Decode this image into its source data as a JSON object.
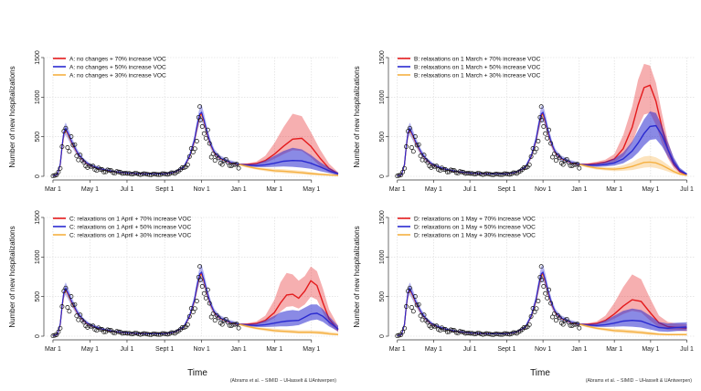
{
  "figure": {
    "x_title": "Time",
    "citation": "(Abrams et al. − SIMID − UHasselt & UAntwerpen)"
  },
  "colors": {
    "red": "#e41a1c",
    "blue": "#2a2ad0",
    "orange": "#f5b041",
    "obs": "#111111"
  },
  "chart_data": [
    {
      "type": "line",
      "title": "",
      "ylabel": "Number of new hospitalizations",
      "xlabel": "",
      "ylim": [
        0,
        1500
      ],
      "yticks": [
        0,
        500,
        1000,
        1500
      ],
      "xlim": [
        -15,
        470
      ],
      "xtick_days": [
        0,
        61,
        122,
        184,
        245,
        306,
        365,
        426
      ],
      "xtick_labels": [
        "Mar 1",
        "May 1",
        "Jul 1",
        "Sept 1",
        "Nov 1",
        "Jan 1",
        "Mar 1",
        "May 1"
      ],
      "series": [
        {
          "name": "A: no changes + 70% increase VOC",
          "color": "red",
          "x": [
            306,
            320,
            335,
            350,
            365,
            380,
            395,
            410,
            425,
            440,
            455,
            470
          ],
          "y": [
            150,
            150,
            160,
            200,
            280,
            380,
            470,
            480,
            380,
            230,
            100,
            30
          ],
          "lo": [
            150,
            140,
            145,
            170,
            220,
            280,
            330,
            320,
            240,
            130,
            50,
            15
          ],
          "hi": [
            160,
            165,
            185,
            260,
            420,
            620,
            790,
            760,
            560,
            340,
            160,
            50
          ]
        },
        {
          "name": "A: no changes + 50% increase VOC",
          "color": "blue",
          "x": [
            306,
            320,
            335,
            350,
            365,
            380,
            395,
            410,
            425,
            440,
            455,
            470
          ],
          "y": [
            150,
            140,
            135,
            145,
            165,
            190,
            200,
            195,
            165,
            120,
            70,
            30
          ],
          "lo": [
            150,
            125,
            115,
            115,
            120,
            125,
            120,
            110,
            95,
            65,
            40,
            15
          ],
          "hi": [
            160,
            155,
            160,
            200,
            260,
            320,
            360,
            340,
            270,
            180,
            110,
            50
          ]
        },
        {
          "name": "A: no changes + 30% increase VOC",
          "color": "orange",
          "x": [
            306,
            320,
            335,
            350,
            365,
            380,
            395,
            410,
            425,
            440,
            455,
            470
          ],
          "y": [
            150,
            125,
            100,
            85,
            70,
            65,
            55,
            45,
            35,
            25,
            18,
            10
          ],
          "lo": [
            140,
            110,
            85,
            65,
            50,
            40,
            30,
            25,
            15,
            10,
            5,
            2
          ],
          "hi": [
            160,
            140,
            115,
            105,
            95,
            90,
            80,
            70,
            55,
            40,
            30,
            20
          ]
        }
      ]
    },
    {
      "type": "line",
      "title": "",
      "ylabel": "Number of new hospitalizations",
      "xlabel": "",
      "ylim": [
        0,
        1500
      ],
      "yticks": [
        0,
        500,
        1000,
        1500
      ],
      "xlim": [
        -15,
        500
      ],
      "xtick_days": [
        0,
        61,
        122,
        184,
        245,
        306,
        365,
        426,
        487
      ],
      "xtick_labels": [
        "Mar 1",
        "May 1",
        "Jul 1",
        "Sept 1",
        "Nov 1",
        "Jan 1",
        "Mar 1",
        "May 1",
        "Jul 1"
      ],
      "series": [
        {
          "name": "B: relaxations on 1 March + 70% increase VOC",
          "color": "red",
          "x": [
            306,
            320,
            335,
            350,
            365,
            380,
            395,
            405,
            415,
            425,
            435,
            445,
            455,
            465,
            475,
            487
          ],
          "y": [
            150,
            150,
            160,
            180,
            220,
            350,
            620,
            900,
            1120,
            1150,
            950,
            620,
            340,
            150,
            60,
            20
          ],
          "lo": [
            150,
            140,
            145,
            160,
            180,
            250,
            420,
            620,
            780,
            800,
            650,
            420,
            230,
            100,
            40,
            10
          ],
          "hi": [
            160,
            165,
            185,
            210,
            280,
            520,
            880,
            1220,
            1420,
            1400,
            1180,
            800,
            450,
            220,
            90,
            35
          ]
        },
        {
          "name": "B: relaxations on 1 March + 50% increase VOC",
          "color": "blue",
          "x": [
            306,
            320,
            335,
            350,
            365,
            380,
            395,
            405,
            415,
            425,
            435,
            445,
            455,
            465,
            475,
            487
          ],
          "y": [
            150,
            140,
            140,
            150,
            170,
            220,
            320,
            420,
            540,
            630,
            640,
            520,
            340,
            180,
            80,
            25
          ],
          "lo": [
            150,
            125,
            120,
            125,
            135,
            165,
            230,
            300,
            390,
            460,
            470,
            380,
            250,
            130,
            55,
            15
          ],
          "hi": [
            160,
            155,
            165,
            185,
            225,
            300,
            440,
            580,
            720,
            820,
            800,
            640,
            430,
            240,
            110,
            40
          ]
        },
        {
          "name": "B: relaxations on 1 March + 30% increase VOC",
          "color": "orange",
          "x": [
            306,
            320,
            335,
            350,
            365,
            380,
            395,
            405,
            415,
            425,
            435,
            445,
            455,
            465,
            475,
            487
          ],
          "y": [
            150,
            125,
            105,
            95,
            90,
            100,
            125,
            150,
            175,
            180,
            170,
            140,
            100,
            60,
            30,
            10
          ],
          "lo": [
            140,
            110,
            85,
            75,
            65,
            70,
            80,
            95,
            110,
            115,
            105,
            85,
            60,
            35,
            15,
            5
          ],
          "hi": [
            160,
            140,
            120,
            115,
            115,
            140,
            180,
            220,
            250,
            260,
            240,
            200,
            145,
            90,
            50,
            20
          ]
        }
      ]
    },
    {
      "type": "line",
      "title": "",
      "ylabel": "Number of new hospitalizations",
      "xlabel": "",
      "ylim": [
        0,
        1500
      ],
      "yticks": [
        0,
        500,
        1000,
        1500
      ],
      "xlim": [
        -15,
        470
      ],
      "xtick_days": [
        0,
        61,
        122,
        184,
        245,
        306,
        365,
        426
      ],
      "xtick_labels": [
        "Mar 1",
        "May 1",
        "Jul 1",
        "Sept 1",
        "Nov 1",
        "Jan 1",
        "Mar 1",
        "May 1"
      ],
      "series": [
        {
          "name": "C: relaxations on 1 April + 70% increase VOC",
          "color": "red",
          "x": [
            306,
            320,
            335,
            350,
            365,
            375,
            385,
            395,
            405,
            415,
            425,
            435,
            445,
            455,
            470
          ],
          "y": [
            150,
            150,
            160,
            200,
            300,
            420,
            520,
            530,
            480,
            570,
            700,
            640,
            420,
            220,
            80
          ],
          "lo": [
            150,
            140,
            145,
            170,
            230,
            310,
            370,
            380,
            350,
            400,
            500,
            460,
            300,
            150,
            50
          ],
          "hi": [
            160,
            165,
            185,
            260,
            460,
            680,
            800,
            780,
            700,
            760,
            880,
            820,
            600,
            340,
            130
          ]
        },
        {
          "name": "C: relaxations on 1 April + 50% increase VOC",
          "color": "blue",
          "x": [
            306,
            320,
            335,
            350,
            365,
            375,
            385,
            395,
            405,
            415,
            425,
            435,
            445,
            455,
            470
          ],
          "y": [
            150,
            140,
            135,
            145,
            165,
            180,
            190,
            195,
            200,
            240,
            280,
            290,
            250,
            180,
            90
          ],
          "lo": [
            150,
            125,
            115,
            115,
            120,
            125,
            125,
            130,
            140,
            170,
            200,
            210,
            180,
            125,
            60
          ],
          "hi": [
            160,
            155,
            160,
            200,
            260,
            300,
            320,
            330,
            320,
            360,
            400,
            400,
            340,
            250,
            130
          ]
        },
        {
          "name": "C: relaxations on 1 April + 30% increase VOC",
          "color": "orange",
          "x": [
            306,
            320,
            335,
            350,
            365,
            375,
            385,
            395,
            405,
            415,
            425,
            435,
            445,
            455,
            470
          ],
          "y": [
            150,
            125,
            100,
            85,
            70,
            65,
            60,
            55,
            50,
            50,
            50,
            45,
            40,
            30,
            20
          ],
          "lo": [
            140,
            110,
            85,
            65,
            50,
            45,
            40,
            35,
            30,
            30,
            30,
            25,
            20,
            15,
            10
          ],
          "hi": [
            160,
            140,
            115,
            105,
            95,
            90,
            85,
            80,
            75,
            75,
            75,
            70,
            65,
            55,
            40
          ]
        }
      ]
    },
    {
      "type": "line",
      "title": "",
      "ylabel": "Number of new hospitalizations",
      "xlabel": "",
      "ylim": [
        0,
        1500
      ],
      "yticks": [
        0,
        500,
        1000,
        1500
      ],
      "xlim": [
        -15,
        500
      ],
      "xtick_days": [
        0,
        61,
        122,
        184,
        245,
        306,
        365,
        426,
        487
      ],
      "xtick_labels": [
        "Mar 1",
        "May 1",
        "Jul 1",
        "Sept 1",
        "Nov 1",
        "Jan 1",
        "Mar 1",
        "May 1",
        "Jul 1"
      ],
      "series": [
        {
          "name": "D: relaxations on 1 May + 70% increase VOC",
          "color": "red",
          "x": [
            306,
            320,
            335,
            350,
            365,
            380,
            395,
            410,
            425,
            440,
            455,
            470,
            487
          ],
          "y": [
            150,
            150,
            160,
            200,
            280,
            380,
            460,
            440,
            300,
            170,
            120,
            110,
            100
          ],
          "lo": [
            150,
            140,
            145,
            170,
            220,
            280,
            320,
            300,
            200,
            110,
            80,
            70,
            60
          ],
          "hi": [
            160,
            165,
            185,
            260,
            420,
            620,
            780,
            720,
            480,
            260,
            180,
            160,
            150
          ]
        },
        {
          "name": "D: relaxations on 1 May + 50% increase VOC",
          "color": "blue",
          "x": [
            306,
            320,
            335,
            350,
            365,
            380,
            395,
            410,
            425,
            440,
            455,
            470,
            487
          ],
          "y": [
            150,
            140,
            135,
            145,
            165,
            190,
            200,
            190,
            150,
            110,
            100,
            110,
            115
          ],
          "lo": [
            150,
            125,
            115,
            115,
            120,
            125,
            120,
            110,
            85,
            60,
            55,
            65,
            70
          ],
          "hi": [
            160,
            155,
            160,
            200,
            260,
            320,
            350,
            330,
            260,
            180,
            160,
            170,
            175
          ]
        },
        {
          "name": "D: relaxations on 1 May + 30% increase VOC",
          "color": "orange",
          "x": [
            306,
            320,
            335,
            350,
            365,
            380,
            395,
            410,
            425,
            440,
            455,
            470,
            487
          ],
          "y": [
            150,
            125,
            100,
            85,
            70,
            65,
            55,
            45,
            35,
            25,
            20,
            20,
            20
          ],
          "lo": [
            140,
            110,
            85,
            65,
            50,
            40,
            30,
            25,
            15,
            10,
            8,
            8,
            8
          ],
          "hi": [
            160,
            140,
            115,
            105,
            95,
            90,
            80,
            70,
            55,
            40,
            35,
            35,
            35
          ]
        }
      ]
    }
  ]
}
